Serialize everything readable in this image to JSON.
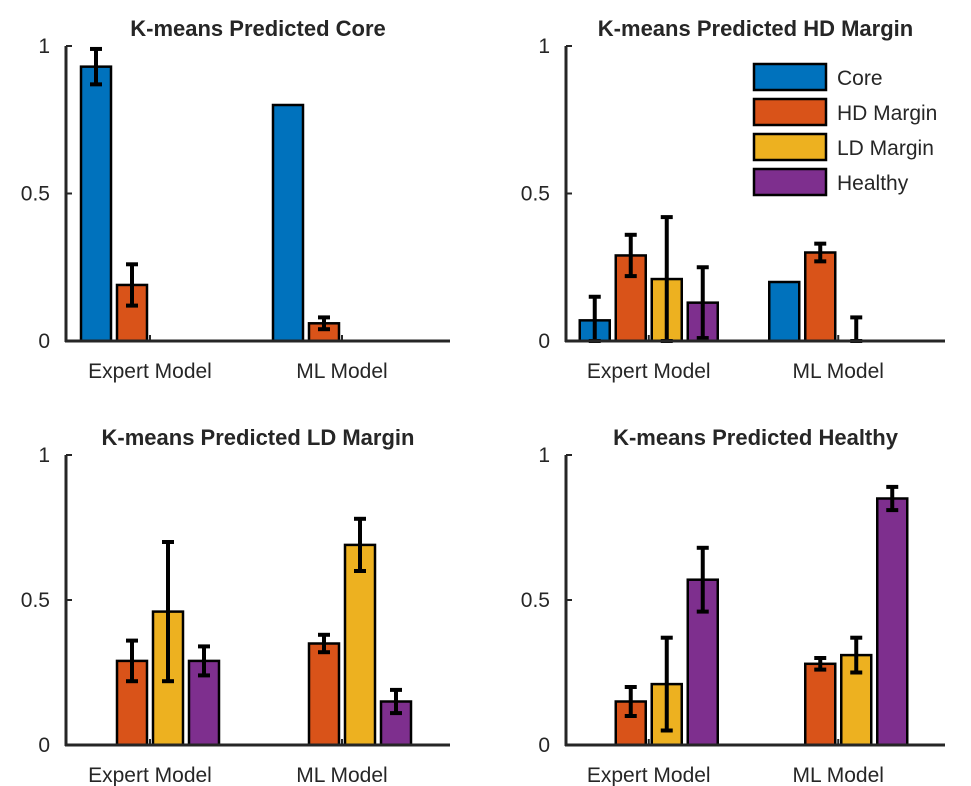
{
  "colors": {
    "Core": "#0072BD",
    "HD Margin": "#D95319",
    "LD Margin": "#EDB120",
    "Healthy": "#7E2F8E"
  },
  "legend": {
    "placement": "top-right of panel 2",
    "entries": [
      "Core",
      "HD Margin",
      "LD Margin",
      "Healthy"
    ]
  },
  "chart_data": [
    {
      "type": "bar",
      "title": "K-means Predicted Core",
      "categories": [
        "Expert Model",
        "ML Model"
      ],
      "ylim": [
        0,
        1
      ],
      "yticks": [
        "0",
        "0.5",
        "1"
      ],
      "grid": false,
      "series": [
        {
          "name": "Core",
          "values": [
            0.93,
            0.8
          ],
          "err": [
            0.06,
            0.0
          ]
        },
        {
          "name": "HD Margin",
          "values": [
            0.19,
            0.06
          ],
          "err": [
            0.07,
            0.02
          ]
        },
        {
          "name": "LD Margin",
          "values": [
            0.0,
            0.0
          ],
          "err": [
            0.0,
            0.0
          ]
        },
        {
          "name": "Healthy",
          "values": [
            0.0,
            0.0
          ],
          "err": [
            0.0,
            0.0
          ]
        }
      ]
    },
    {
      "type": "bar",
      "title": "K-means Predicted HD Margin",
      "categories": [
        "Expert Model",
        "ML Model"
      ],
      "ylim": [
        0,
        1
      ],
      "yticks": [
        "0",
        "0.5",
        "1"
      ],
      "grid": false,
      "series": [
        {
          "name": "Core",
          "values": [
            0.07,
            0.2
          ],
          "err": [
            0.08,
            0.0
          ]
        },
        {
          "name": "HD Margin",
          "values": [
            0.29,
            0.3
          ],
          "err": [
            0.07,
            0.03
          ]
        },
        {
          "name": "LD Margin",
          "values": [
            0.21,
            0.0
          ],
          "err": [
            0.21,
            0.08
          ]
        },
        {
          "name": "Healthy",
          "values": [
            0.13,
            0.0
          ],
          "err": [
            0.12,
            0.0
          ]
        }
      ]
    },
    {
      "type": "bar",
      "title": "K-means Predicted LD Margin",
      "categories": [
        "Expert Model",
        "ML Model"
      ],
      "ylim": [
        0,
        1
      ],
      "yticks": [
        "0",
        "0.5",
        "1"
      ],
      "grid": false,
      "series": [
        {
          "name": "Core",
          "values": [
            0.0,
            0.0
          ],
          "err": [
            0.0,
            0.0
          ]
        },
        {
          "name": "HD Margin",
          "values": [
            0.29,
            0.35
          ],
          "err": [
            0.07,
            0.03
          ]
        },
        {
          "name": "LD Margin",
          "values": [
            0.46,
            0.69
          ],
          "err": [
            0.24,
            0.09
          ]
        },
        {
          "name": "Healthy",
          "values": [
            0.29,
            0.15
          ],
          "err": [
            0.05,
            0.04
          ]
        }
      ]
    },
    {
      "type": "bar",
      "title": "K-means Predicted Healthy",
      "categories": [
        "Expert Model",
        "ML Model"
      ],
      "ylim": [
        0,
        1
      ],
      "yticks": [
        "0",
        "0.5",
        "1"
      ],
      "grid": false,
      "series": [
        {
          "name": "Core",
          "values": [
            0.0,
            0.0
          ],
          "err": [
            0.0,
            0.0
          ]
        },
        {
          "name": "HD Margin",
          "values": [
            0.15,
            0.28
          ],
          "err": [
            0.05,
            0.02
          ]
        },
        {
          "name": "LD Margin",
          "values": [
            0.21,
            0.31
          ],
          "err": [
            0.16,
            0.06
          ]
        },
        {
          "name": "Healthy",
          "values": [
            0.57,
            0.85
          ],
          "err": [
            0.11,
            0.04
          ]
        }
      ]
    }
  ]
}
